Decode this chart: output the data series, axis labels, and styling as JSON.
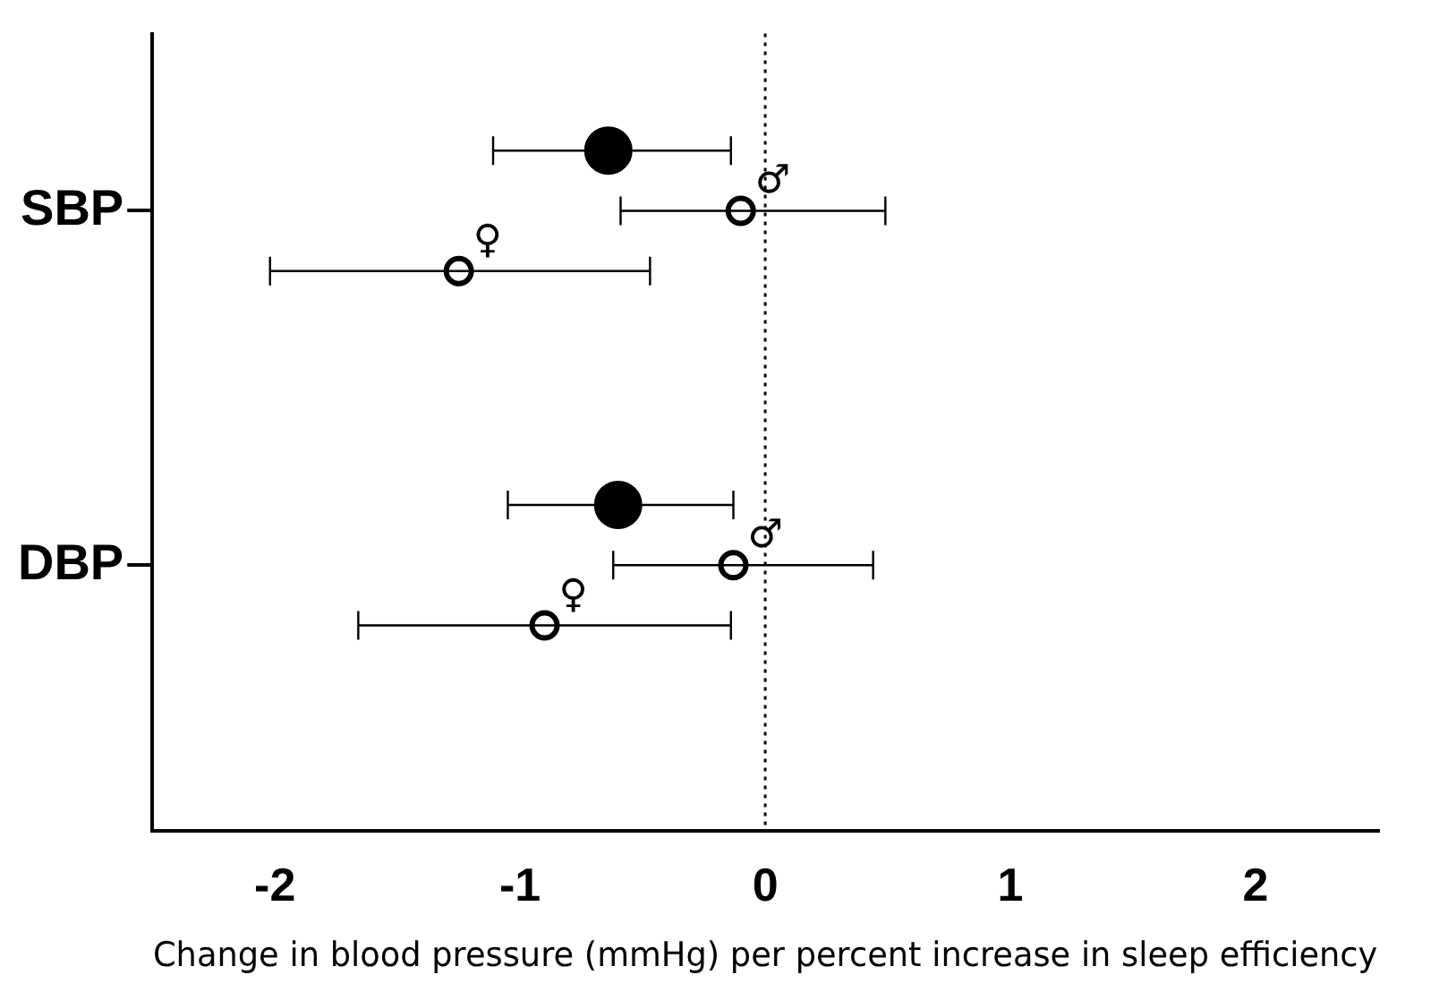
{
  "chart_data": {
    "type": "scatter",
    "orientation": "horizontal",
    "categories": [
      "SBP",
      "DBP"
    ],
    "xlabel": "Change in blood pressure (mmHg) per percent increase in sleep efficiency",
    "xlim": [
      -2.5,
      2.5
    ],
    "xticks": [
      -2,
      -1,
      0,
      1,
      2
    ],
    "grid": false,
    "legend": false,
    "series": [
      {
        "color": "#000000",
        "marker": "circle",
        "values": [
          -0.64,
          -0.6
        ],
        "errors": [
          [
            -1.11,
            -0.14
          ],
          [
            -1.05,
            -0.13
          ]
        ]
      },
      {
        "name": "♂",
        "color": "#000000",
        "marker": "circle",
        "values": [
          -0.1,
          -0.13
        ],
        "errors": [
          [
            -0.59,
            0.49
          ],
          [
            -0.62,
            0.44
          ]
        ]
      },
      {
        "name": "♀",
        "color": "#000000",
        "marker": "circle",
        "values": [
          -1.25,
          -0.9
        ],
        "errors": [
          [
            -2.02,
            -0.47
          ],
          [
            -1.66,
            -0.14
          ]
        ]
      }
    ],
    "ref_lines": [
      {
        "axis": "x",
        "value": 0,
        "line_style": "dotted"
      }
    ]
  }
}
